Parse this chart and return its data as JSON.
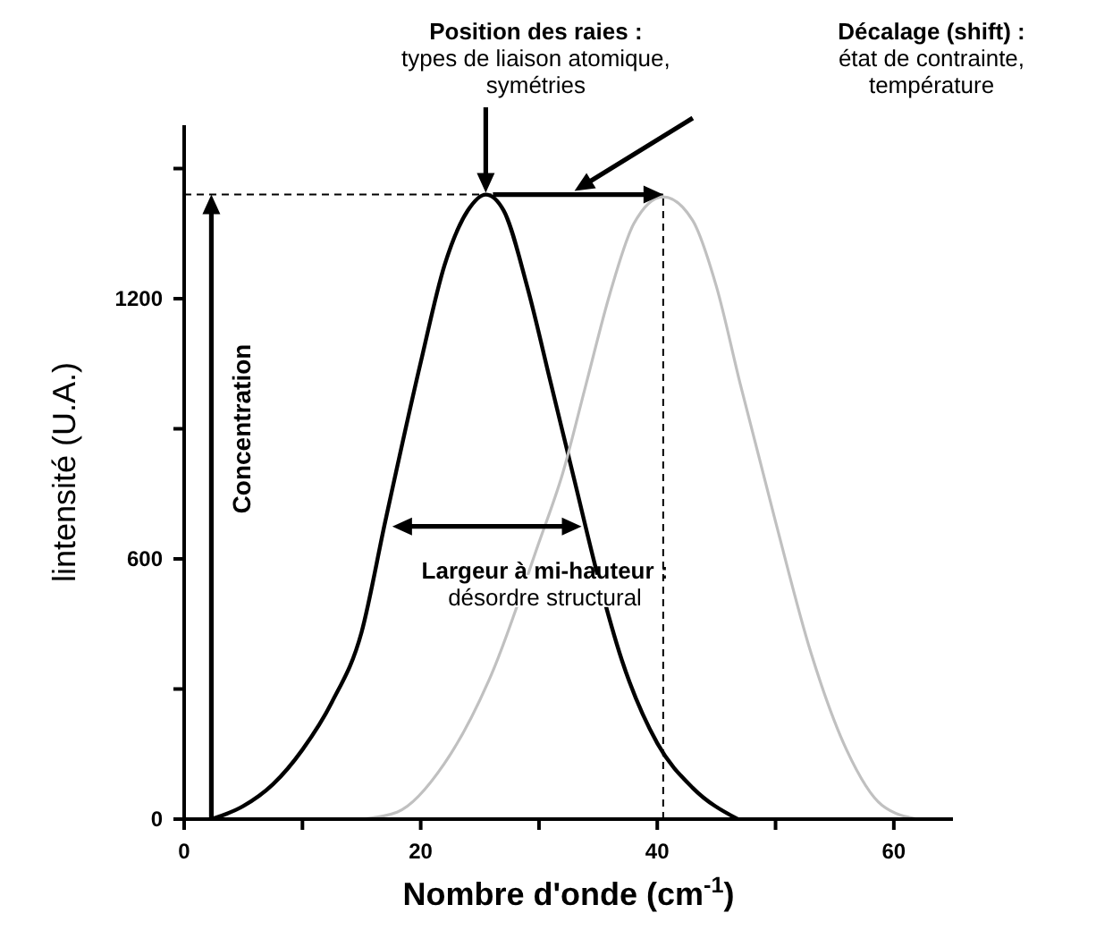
{
  "chart_data": {
    "type": "line",
    "xlabel": "Nombre d'onde (cm$^{-1}$)",
    "ylabel": "lintensité (U.A.)",
    "xlim": [
      0,
      65
    ],
    "xticks": [
      0,
      {
        "value": 10,
        "label": null
      },
      20,
      {
        "value": 30,
        "label": null
      },
      40,
      {
        "value": 50,
        "label": null
      },
      60
    ],
    "ylim": [
      0,
      1600
    ],
    "yticks": [
      0,
      {
        "value": 300,
        "label": null
      },
      600,
      {
        "value": 900,
        "label": null
      },
      1200,
      {
        "value": 1500,
        "label": null
      }
    ],
    "marker": "none",
    "series": [
      {
        "color": "#000000",
        "x": [
          2.3,
          5,
          7.5,
          10,
          12.5,
          15,
          17,
          20,
          22,
          24,
          25.5,
          27,
          29,
          31,
          33,
          35,
          37,
          40,
          43,
          46.8
        ],
        "values": [
          0,
          30,
          80,
          160,
          270,
          431,
          686,
          1053,
          1276,
          1404,
          1440,
          1404,
          1228,
          1005,
          781,
          558,
          367,
          175,
          72,
          0
        ]
      },
      {
        "color": "#c0c0c0",
        "x": [
          15,
          18,
          22,
          26,
          30,
          32,
          34,
          36,
          38,
          40.5,
          43,
          45,
          47,
          50,
          53,
          56,
          59,
          62
        ],
        "values": [
          0,
          16,
          128,
          335,
          638,
          797,
          1005,
          1212,
          1372,
          1435,
          1380,
          1228,
          1005,
          686,
          383,
          160,
          32,
          0
        ]
      }
    ],
    "ref_lines": [
      {
        "axis": "y",
        "value": 1440,
        "color": "#000000",
        "line_style": "dashed"
      },
      {
        "axis": "x",
        "value": 40.5,
        "color": "#000000",
        "line_style": "dashed"
      }
    ],
    "annotations": [
      "Position des raies :\ntypes de liaison atomique,\nsymétries",
      "Décalage (shift) :\nétat de contrainte,\ntempérature",
      "Largeur à mi-hauteur :\ndésordre structural",
      "Concentration"
    ]
  }
}
